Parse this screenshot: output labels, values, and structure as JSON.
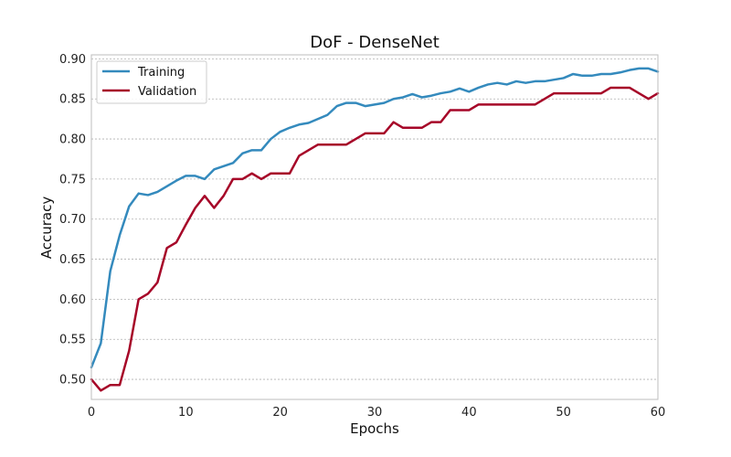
{
  "chart_data": {
    "type": "line",
    "title": "DoF - DenseNet",
    "xlabel": "Epochs",
    "ylabel": "Accuracy",
    "xlim": [
      0,
      60
    ],
    "ylim": [
      0.475,
      0.905
    ],
    "xticks": [
      0,
      10,
      20,
      30,
      40,
      50,
      60
    ],
    "yticks": [
      0.5,
      0.55,
      0.6,
      0.65,
      0.7,
      0.75,
      0.8,
      0.85,
      0.9
    ],
    "grid": true,
    "legend_position": "top-left",
    "x": [
      0,
      1,
      2,
      3,
      4,
      5,
      6,
      7,
      8,
      9,
      10,
      11,
      12,
      13,
      14,
      15,
      16,
      17,
      18,
      19,
      20,
      21,
      22,
      23,
      24,
      25,
      26,
      27,
      28,
      29,
      30,
      31,
      32,
      33,
      34,
      35,
      36,
      37,
      38,
      39,
      40,
      41,
      42,
      43,
      44,
      45,
      46,
      47,
      48,
      49,
      50,
      51,
      52,
      53,
      54,
      55,
      56,
      57,
      58,
      59,
      60
    ],
    "series": [
      {
        "name": "Training",
        "color": "#348ABD",
        "values": [
          0.515,
          0.545,
          0.635,
          0.68,
          0.716,
          0.732,
          0.73,
          0.734,
          0.741,
          0.748,
          0.754,
          0.754,
          0.75,
          0.762,
          0.766,
          0.77,
          0.782,
          0.786,
          0.786,
          0.8,
          0.809,
          0.814,
          0.818,
          0.82,
          0.825,
          0.83,
          0.841,
          0.845,
          0.845,
          0.841,
          0.843,
          0.845,
          0.85,
          0.852,
          0.856,
          0.852,
          0.854,
          0.857,
          0.859,
          0.863,
          0.859,
          0.864,
          0.868,
          0.87,
          0.868,
          0.872,
          0.87,
          0.872,
          0.872,
          0.874,
          0.876,
          0.881,
          0.879,
          0.879,
          0.881,
          0.881,
          0.883,
          0.886,
          0.888,
          0.888,
          0.884
        ]
      },
      {
        "name": "Validation",
        "color": "#A60628",
        "values": [
          0.5,
          0.486,
          0.493,
          0.493,
          0.536,
          0.6,
          0.607,
          0.621,
          0.664,
          0.671,
          0.693,
          0.714,
          0.729,
          0.714,
          0.729,
          0.75,
          0.75,
          0.757,
          0.75,
          0.757,
          0.757,
          0.757,
          0.779,
          0.786,
          0.793,
          0.793,
          0.793,
          0.793,
          0.8,
          0.807,
          0.807,
          0.807,
          0.821,
          0.814,
          0.814,
          0.814,
          0.821,
          0.821,
          0.836,
          0.836,
          0.836,
          0.843,
          0.843,
          0.843,
          0.843,
          0.843,
          0.843,
          0.843,
          0.85,
          0.857,
          0.857,
          0.857,
          0.857,
          0.857,
          0.857,
          0.864,
          0.864,
          0.864,
          0.857,
          0.85,
          0.857
        ]
      }
    ]
  }
}
